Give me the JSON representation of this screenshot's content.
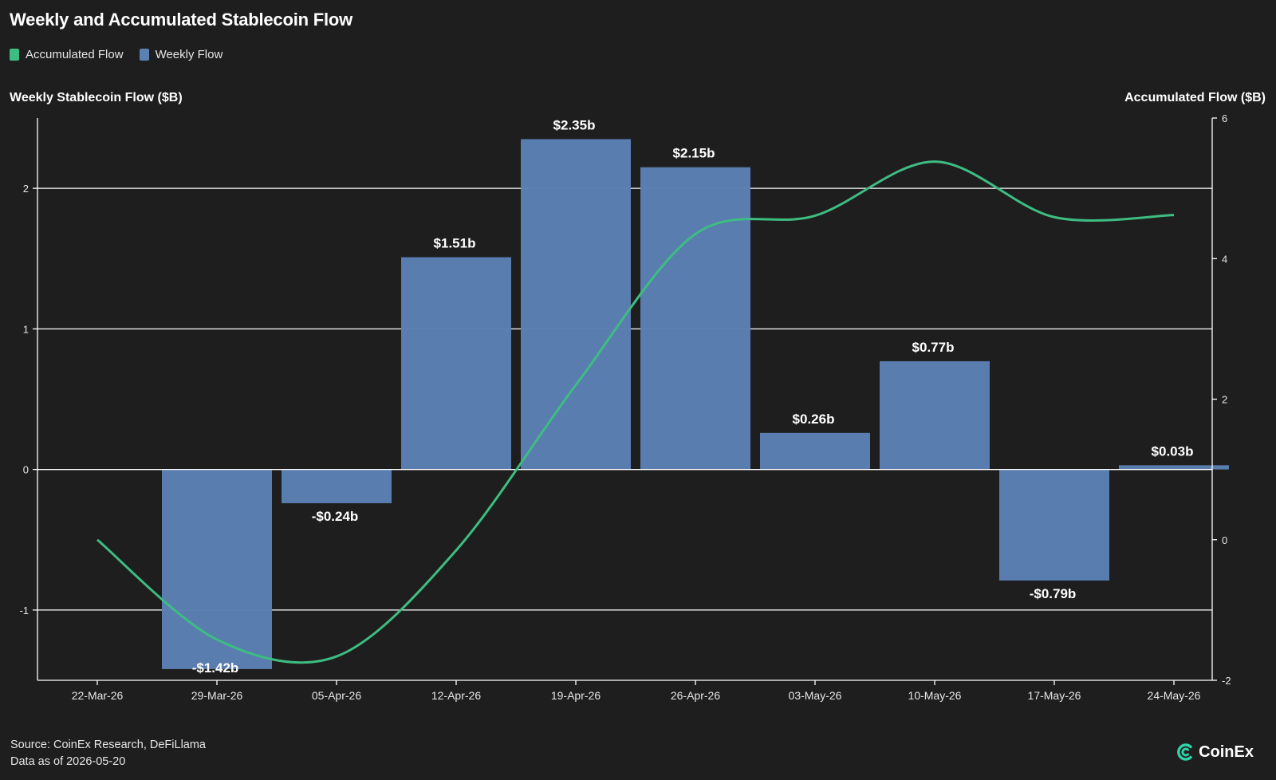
{
  "title": "Weekly and Accumulated Stablecoin Flow",
  "legend": [
    {
      "label": "Accumulated Flow",
      "color": "#3dbd82"
    },
    {
      "label": "Weekly Flow",
      "color": "#5b80b2"
    }
  ],
  "axes": {
    "left_title": "Weekly Stablecoin Flow ($B)",
    "right_title": "Accumulated Flow ($B)"
  },
  "footer": {
    "source": "Source: CoinEx Research, DeFiLlama",
    "date": "Data as of 2026-05-20"
  },
  "brand": {
    "name": "CoinEx",
    "icon": "coinex-logo-icon"
  },
  "chart_data": {
    "type": "bar",
    "categories": [
      "22-Mar-26",
      "29-Mar-26",
      "05-Apr-26",
      "12-Apr-26",
      "19-Apr-26",
      "26-Apr-26",
      "03-May-26",
      "10-May-26",
      "17-May-26",
      "24-May-26"
    ],
    "series": [
      {
        "name": "Weekly Flow",
        "type": "bar",
        "axis": "left",
        "color": "#5b80b2",
        "values": [
          null,
          -1.42,
          -0.24,
          1.51,
          2.35,
          2.15,
          0.26,
          0.77,
          -0.79,
          0.03
        ],
        "labels": [
          null,
          "-$1.42b",
          "-$0.24b",
          "$1.51b",
          "$2.35b",
          "$2.15b",
          "$0.26b",
          "$0.77b",
          "-$0.79b",
          "$0.03b"
        ]
      },
      {
        "name": "Accumulated Flow",
        "type": "line",
        "axis": "right",
        "color": "#3dbd82",
        "values": [
          0.0,
          -1.42,
          -1.66,
          -0.15,
          2.2,
          4.35,
          4.61,
          5.38,
          4.59,
          4.62
        ]
      }
    ],
    "y_left": {
      "min": -1.5,
      "max": 2.5,
      "ticks": [
        -1,
        0,
        1,
        2
      ]
    },
    "y_right": {
      "min": -2,
      "max": 6,
      "ticks": [
        -2,
        0,
        2,
        4,
        6
      ]
    },
    "grid": true,
    "legend_position": "top-left"
  }
}
